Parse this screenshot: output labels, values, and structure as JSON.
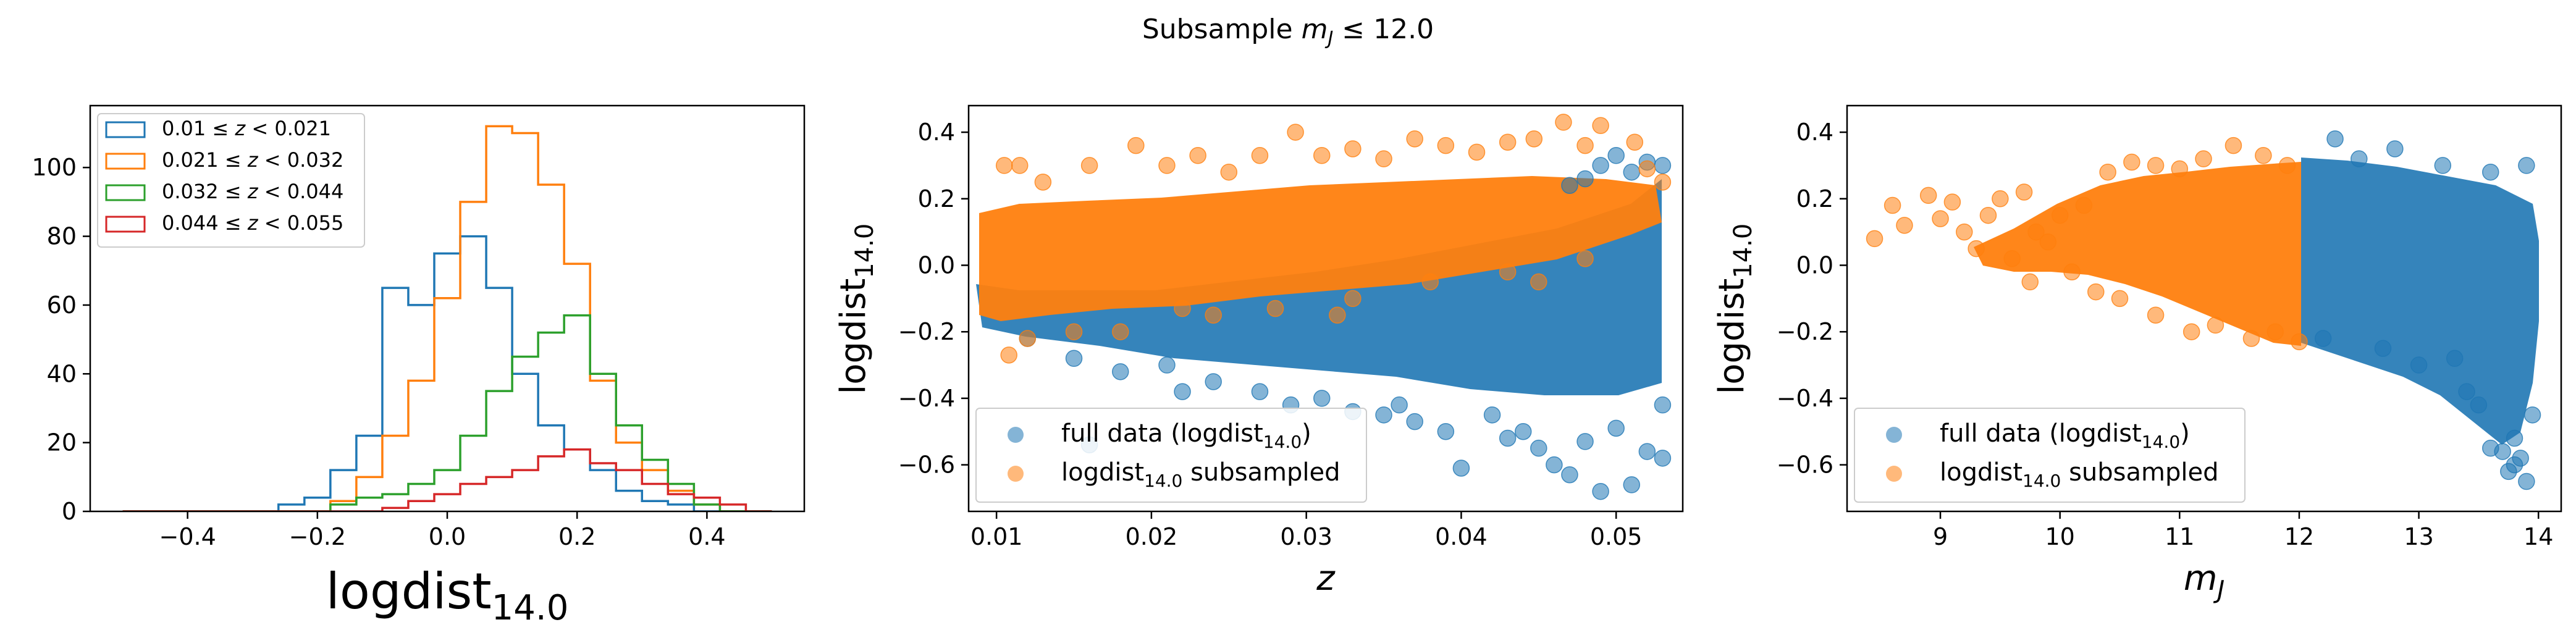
{
  "figure": {
    "suptitle": "Subsample $m_J \\leq 12.0$"
  },
  "chart_data": [
    {
      "type": "histogram",
      "xlabel": "logdist_{14.0}",
      "ylabel": "",
      "xlim": [
        -0.55,
        0.55
      ],
      "ylim": [
        0,
        118
      ],
      "xticks": [
        -0.4,
        -0.2,
        0.0,
        0.2,
        0.4
      ],
      "xticklabels": [
        "−0.4",
        "−0.2",
        "0.0",
        "0.2",
        "0.4"
      ],
      "yticks": [
        0,
        20,
        40,
        60,
        80,
        100
      ],
      "yticklabels": [
        "0",
        "20",
        "40",
        "60",
        "80",
        "100"
      ],
      "bin_edges": [
        -0.5,
        -0.46,
        -0.42,
        -0.38,
        -0.34,
        -0.3,
        -0.26,
        -0.22,
        -0.18,
        -0.14,
        -0.1,
        -0.06,
        -0.02,
        0.02,
        0.06,
        0.1,
        0.14,
        0.18,
        0.22,
        0.26,
        0.3,
        0.34,
        0.38,
        0.42,
        0.46,
        0.5
      ],
      "legend_location": "upper left",
      "series": [
        {
          "name": "0.01 $\\leq z <$ 0.021",
          "color": "#1f77b4",
          "counts": [
            0,
            0,
            0,
            0,
            0,
            0,
            2,
            4,
            12,
            22,
            65,
            60,
            75,
            80,
            65,
            40,
            25,
            18,
            12,
            6,
            3,
            2,
            0,
            0,
            0
          ]
        },
        {
          "name": "0.021 $\\leq z <$ 0.032",
          "color": "#ff7f0e",
          "counts": [
            0,
            0,
            0,
            0,
            0,
            0,
            0,
            0,
            3,
            10,
            22,
            38,
            62,
            90,
            112,
            110,
            95,
            72,
            38,
            20,
            12,
            6,
            2,
            0,
            0
          ]
        },
        {
          "name": "0.032 $\\leq z <$ 0.044",
          "color": "#2ca02c",
          "counts": [
            0,
            0,
            0,
            0,
            0,
            0,
            0,
            0,
            2,
            4,
            5,
            8,
            12,
            22,
            35,
            45,
            52,
            57,
            40,
            25,
            15,
            8,
            2,
            0,
            0
          ]
        },
        {
          "name": "0.044 $\\leq z <$ 0.055",
          "color": "#d62728",
          "counts": [
            0,
            0,
            0,
            0,
            0,
            0,
            0,
            0,
            0,
            0,
            1,
            3,
            5,
            8,
            10,
            12,
            16,
            18,
            14,
            12,
            8,
            5,
            4,
            2,
            0
          ]
        }
      ]
    },
    {
      "type": "scatter",
      "xlabel": "$z$",
      "ylabel": "logdist_{14.0}",
      "xlim": [
        0.0082,
        0.0543
      ],
      "ylim": [
        -0.74,
        0.48
      ],
      "xticks": [
        0.01,
        0.02,
        0.03,
        0.04,
        0.05
      ],
      "xticklabels": [
        "0.01",
        "0.02",
        "0.03",
        "0.04",
        "0.05"
      ],
      "yticks": [
        -0.6,
        -0.4,
        -0.2,
        0.0,
        0.2,
        0.4
      ],
      "yticklabels": [
        "−0.6",
        "−0.4",
        "−0.2",
        "0.0",
        "0.2",
        "0.4"
      ],
      "legend_location": "lower left",
      "series": [
        {
          "name": "full data (logdist$_{14.0}$)",
          "color": "#1f77b4",
          "alpha": 0.55,
          "points": [
            [
              0.012,
              -0.22
            ],
            [
              0.015,
              -0.28
            ],
            [
              0.018,
              -0.32
            ],
            [
              0.021,
              -0.3
            ],
            [
              0.024,
              -0.35
            ],
            [
              0.027,
              -0.38
            ],
            [
              0.029,
              -0.42
            ],
            [
              0.031,
              -0.4
            ],
            [
              0.033,
              -0.44
            ],
            [
              0.035,
              -0.45
            ],
            [
              0.037,
              -0.47
            ],
            [
              0.039,
              -0.5
            ],
            [
              0.04,
              -0.61
            ],
            [
              0.042,
              -0.45
            ],
            [
              0.043,
              -0.52
            ],
            [
              0.044,
              -0.5
            ],
            [
              0.045,
              -0.55
            ],
            [
              0.046,
              -0.6
            ],
            [
              0.047,
              -0.63
            ],
            [
              0.048,
              -0.53
            ],
            [
              0.049,
              -0.68
            ],
            [
              0.05,
              -0.49
            ],
            [
              0.051,
              -0.66
            ],
            [
              0.052,
              -0.56
            ],
            [
              0.053,
              -0.58
            ],
            [
              0.053,
              -0.42
            ],
            [
              0.052,
              0.31
            ],
            [
              0.051,
              0.28
            ],
            [
              0.05,
              0.33
            ],
            [
              0.049,
              0.3
            ],
            [
              0.048,
              0.26
            ],
            [
              0.047,
              0.24
            ],
            [
              0.053,
              0.3
            ],
            [
              0.016,
              -0.54
            ],
            [
              0.022,
              -0.38
            ],
            [
              0.036,
              -0.42
            ]
          ]
        },
        {
          "name": "logdist$_{14.0}$ subsampled",
          "color": "#ff7f0e",
          "alpha": 0.55,
          "points": [
            [
              0.0105,
              0.3
            ],
            [
              0.0115,
              0.3
            ],
            [
              0.0108,
              -0.27
            ],
            [
              0.012,
              -0.22
            ],
            [
              0.013,
              0.25
            ],
            [
              0.016,
              0.3
            ],
            [
              0.019,
              0.36
            ],
            [
              0.021,
              0.3
            ],
            [
              0.023,
              0.33
            ],
            [
              0.025,
              0.28
            ],
            [
              0.027,
              0.33
            ],
            [
              0.0293,
              0.4
            ],
            [
              0.031,
              0.33
            ],
            [
              0.033,
              0.35
            ],
            [
              0.035,
              0.32
            ],
            [
              0.037,
              0.38
            ],
            [
              0.039,
              0.36
            ],
            [
              0.041,
              0.34
            ],
            [
              0.043,
              0.37
            ],
            [
              0.0447,
              0.38
            ],
            [
              0.0466,
              0.43
            ],
            [
              0.048,
              0.36
            ],
            [
              0.049,
              0.42
            ],
            [
              0.0512,
              0.37
            ],
            [
              0.052,
              0.29
            ],
            [
              0.053,
              0.25
            ],
            [
              0.015,
              -0.2
            ],
            [
              0.018,
              -0.2
            ],
            [
              0.024,
              -0.15
            ],
            [
              0.028,
              -0.13
            ],
            [
              0.033,
              -0.1
            ],
            [
              0.038,
              -0.05
            ],
            [
              0.043,
              -0.02
            ],
            [
              0.048,
              0.02
            ],
            [
              0.022,
              -0.13
            ],
            [
              0.032,
              -0.15
            ],
            [
              0.045,
              -0.05
            ]
          ]
        }
      ]
    },
    {
      "type": "scatter",
      "xlabel": "$m_J$",
      "ylabel": "logdist_{14.0}",
      "xlim": [
        8.22,
        14.19
      ],
      "ylim": [
        -0.74,
        0.48
      ],
      "xticks": [
        9,
        10,
        11,
        12,
        13,
        14
      ],
      "xticklabels": [
        "9",
        "10",
        "11",
        "12",
        "13",
        "14"
      ],
      "yticks": [
        -0.6,
        -0.4,
        -0.2,
        0.0,
        0.2,
        0.4
      ],
      "yticklabels": [
        "−0.6",
        "−0.4",
        "−0.2",
        "0.0",
        "0.2",
        "0.4"
      ],
      "legend_location": "lower left",
      "series": [
        {
          "name": "full data (logdist$_{14.0}$)",
          "color": "#1f77b4",
          "alpha": 0.55,
          "points": [
            [
              12.5,
              0.32
            ],
            [
              12.8,
              0.35
            ],
            [
              12.3,
              0.38
            ],
            [
              13.2,
              0.3
            ],
            [
              13.6,
              0.28
            ],
            [
              13.9,
              0.3
            ],
            [
              13.8,
              -0.52
            ],
            [
              13.7,
              -0.56
            ],
            [
              13.9,
              -0.65
            ],
            [
              13.6,
              -0.55
            ],
            [
              13.5,
              -0.42
            ],
            [
              13.4,
              -0.38
            ],
            [
              13.8,
              -0.6
            ],
            [
              13.3,
              -0.28
            ],
            [
              13.0,
              -0.3
            ],
            [
              12.7,
              -0.25
            ],
            [
              12.2,
              -0.22
            ],
            [
              13.95,
              -0.45
            ],
            [
              13.85,
              -0.58
            ],
            [
              13.75,
              -0.62
            ]
          ]
        },
        {
          "name": "logdist$_{14.0}$ subsampled",
          "color": "#ff7f0e",
          "alpha": 0.55,
          "points": [
            [
              8.45,
              0.08
            ],
            [
              8.6,
              0.18
            ],
            [
              8.7,
              0.12
            ],
            [
              8.9,
              0.21
            ],
            [
              9.0,
              0.14
            ],
            [
              9.1,
              0.19
            ],
            [
              9.2,
              0.1
            ],
            [
              9.3,
              0.05
            ],
            [
              9.4,
              0.15
            ],
            [
              9.5,
              0.2
            ],
            [
              9.6,
              0.02
            ],
            [
              9.7,
              0.22
            ],
            [
              9.8,
              0.1
            ],
            [
              9.9,
              0.07
            ],
            [
              10.0,
              0.15
            ],
            [
              10.1,
              -0.02
            ],
            [
              10.2,
              0.18
            ],
            [
              10.4,
              0.28
            ],
            [
              10.6,
              0.31
            ],
            [
              10.8,
              0.3
            ],
            [
              11.0,
              0.29
            ],
            [
              11.2,
              0.32
            ],
            [
              11.45,
              0.36
            ],
            [
              11.7,
              0.33
            ],
            [
              11.9,
              0.3
            ],
            [
              10.5,
              -0.1
            ],
            [
              10.8,
              -0.15
            ],
            [
              11.1,
              -0.2
            ],
            [
              11.3,
              -0.18
            ],
            [
              11.6,
              -0.22
            ],
            [
              11.8,
              -0.2
            ],
            [
              12.0,
              -0.23
            ],
            [
              9.75,
              -0.05
            ],
            [
              10.3,
              -0.08
            ]
          ]
        }
      ]
    }
  ]
}
